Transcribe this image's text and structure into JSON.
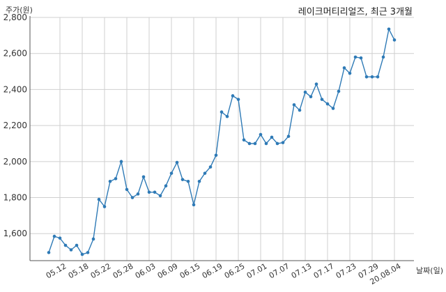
{
  "chart_data": {
    "type": "line",
    "title": "레이크머티리얼즈, 최근 3개월",
    "ylabel": "주가(원)",
    "xlabel": "날짜(일)",
    "ylim": [
      1450,
      2800
    ],
    "y_ticks": [
      1600,
      1800,
      2000,
      2200,
      2400,
      2600,
      2800
    ],
    "y_tick_labels": [
      "1,600",
      "1,800",
      "2,000",
      "2,200",
      "2,400",
      "2,600",
      "2,800"
    ],
    "x_tick_labels": [
      "05.12",
      "05.18",
      "05.22",
      "05.28",
      "06.03",
      "06.09",
      "06.15",
      "06.19",
      "06.25",
      "07.01",
      "07.07",
      "07.13",
      "07.17",
      "07.23",
      "07.29",
      "20.08.04"
    ],
    "x_tick_indices": [
      2,
      6,
      10,
      14,
      18,
      22,
      26,
      30,
      34,
      38,
      42,
      46,
      50,
      54,
      58,
      62
    ],
    "grid": true,
    "series": [
      {
        "color": "#2e7ab6",
        "values": [
          1495,
          1585,
          1575,
          1535,
          1510,
          1535,
          1485,
          1495,
          1570,
          1790,
          1750,
          1890,
          1905,
          2000,
          1845,
          1800,
          1820,
          1915,
          1830,
          1830,
          1810,
          1865,
          1935,
          1995,
          1900,
          1890,
          1760,
          1890,
          1935,
          1970,
          2035,
          2275,
          2250,
          2365,
          2345,
          2120,
          2100,
          2100,
          2150,
          2100,
          2135,
          2100,
          2105,
          2140,
          2315,
          2285,
          2385,
          2360,
          2430,
          2345,
          2320,
          2295,
          2390,
          2520,
          2490,
          2580,
          2575,
          2470,
          2470,
          2470,
          2580,
          2735,
          2675
        ]
      }
    ]
  }
}
